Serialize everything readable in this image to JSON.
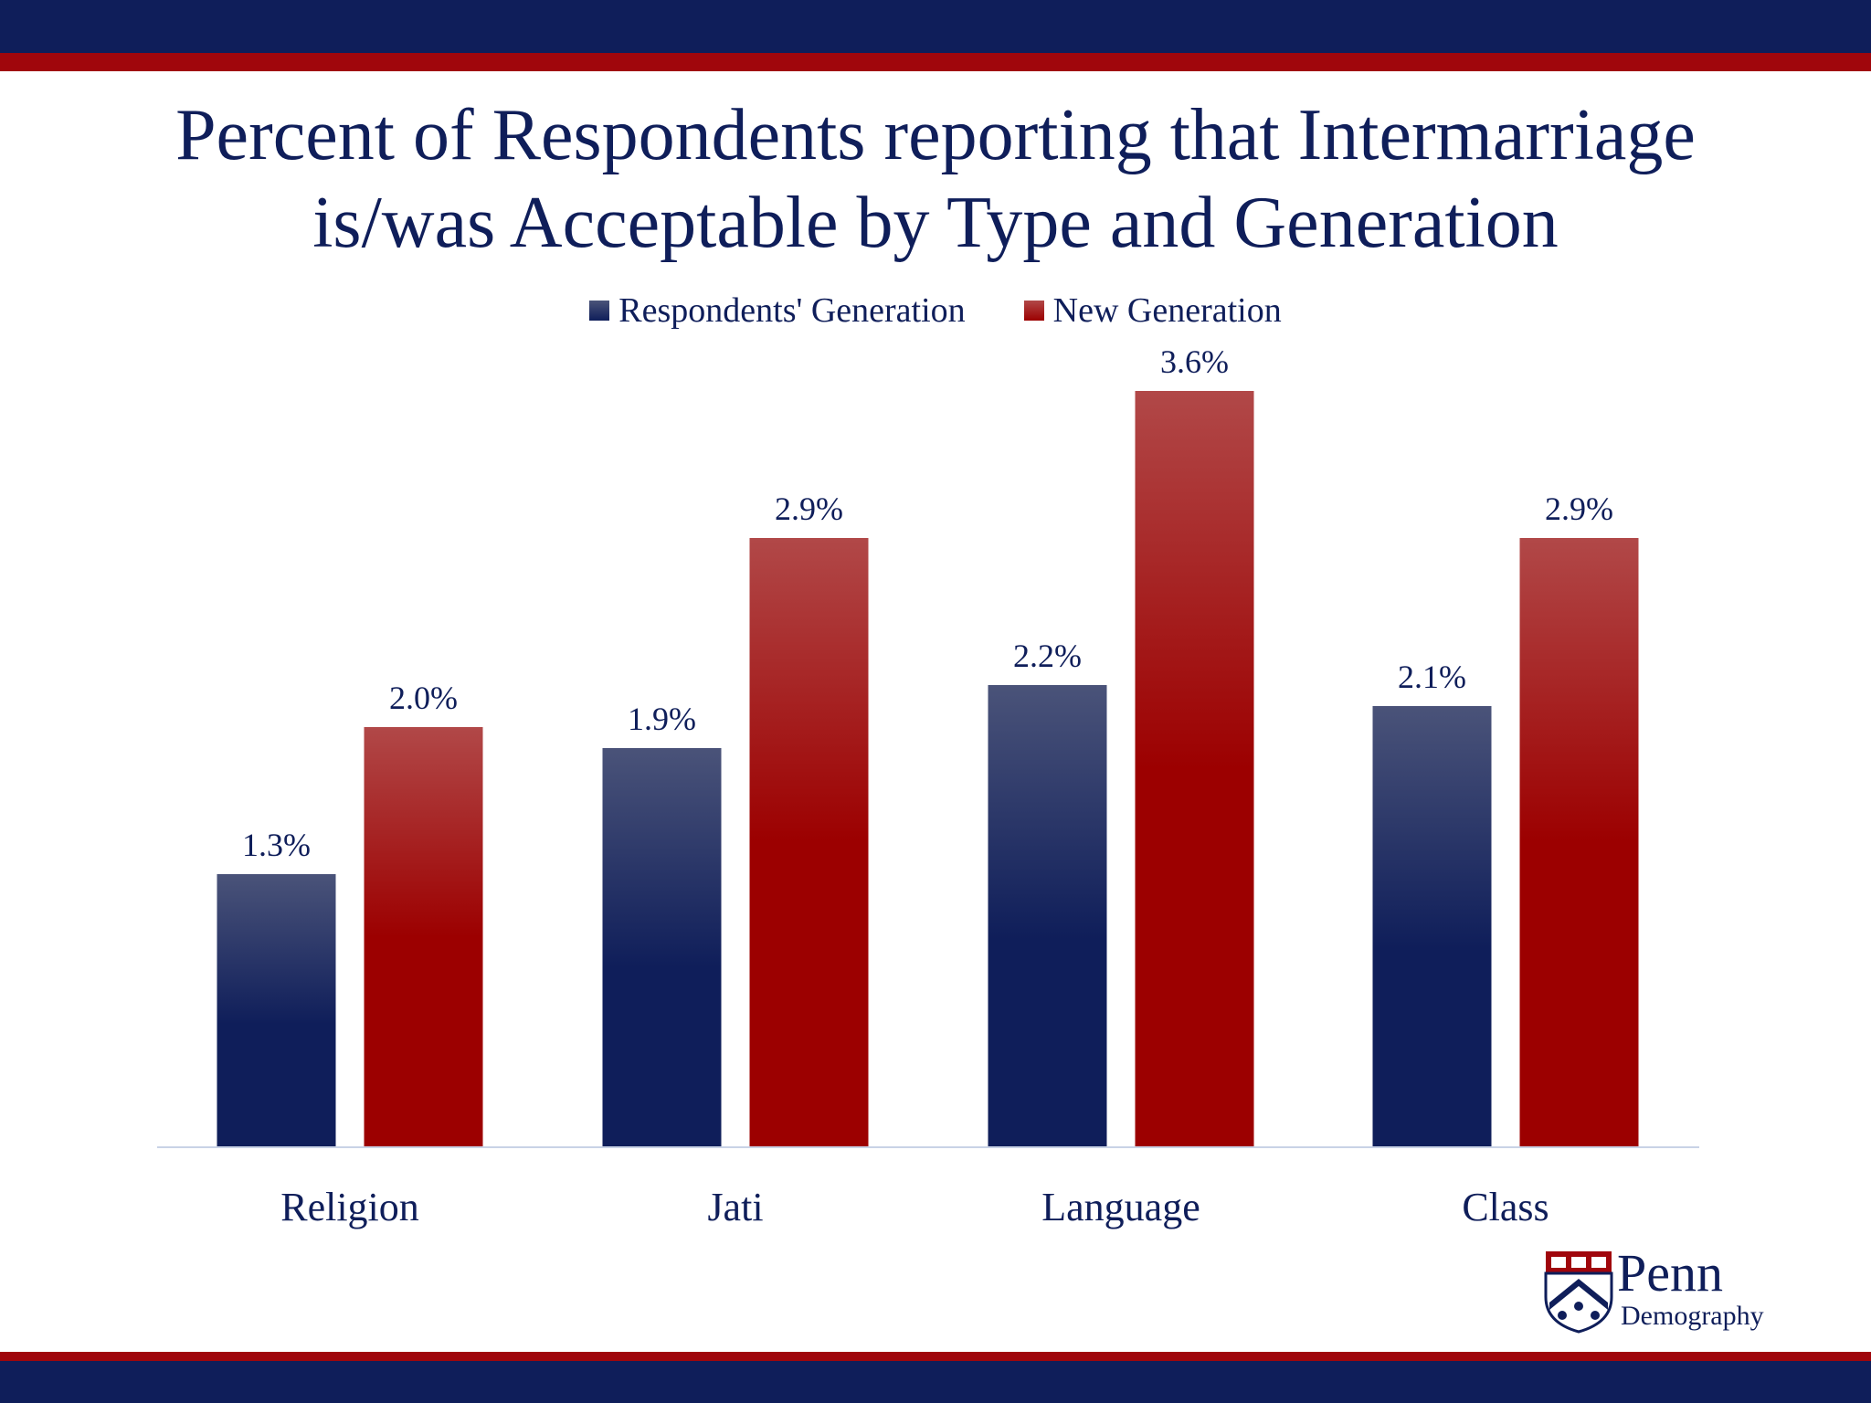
{
  "slide": {
    "title_line1": "Percent of Respondents reporting that Intermarriage",
    "title_line2": "is/was Acceptable by Type and Generation"
  },
  "colors": {
    "navy": "#0f1e5a",
    "red": "#a0060c",
    "bar_blue_top": "#4a5379",
    "bar_blue_bottom": "#0f1e5a",
    "bar_red_top": "#b14848",
    "bar_red_bottom": "#9c0000"
  },
  "chart_data": {
    "type": "bar",
    "title": "Percent of Respondents reporting that Intermarriage is/was Acceptable by Type and Generation",
    "categories": [
      "Religion",
      "Jati",
      "Language",
      "Class"
    ],
    "series": [
      {
        "name": "Respondents' Generation",
        "values": [
          1.3,
          1.9,
          2.2,
          2.1
        ],
        "labels": [
          "1.3%",
          "1.9%",
          "2.2%",
          "2.1%"
        ]
      },
      {
        "name": "New Generation",
        "values": [
          2.0,
          2.9,
          3.6,
          2.9
        ],
        "labels": [
          "2.0%",
          "2.9%",
          "3.6%",
          "2.9%"
        ]
      }
    ],
    "xlabel": "",
    "ylabel": "",
    "ylim": [
      0,
      3.6
    ],
    "grid": false,
    "legend": "top-center"
  },
  "logo": {
    "name": "Penn",
    "subtitle": "Demography",
    "icon": "penn-shield-icon"
  }
}
